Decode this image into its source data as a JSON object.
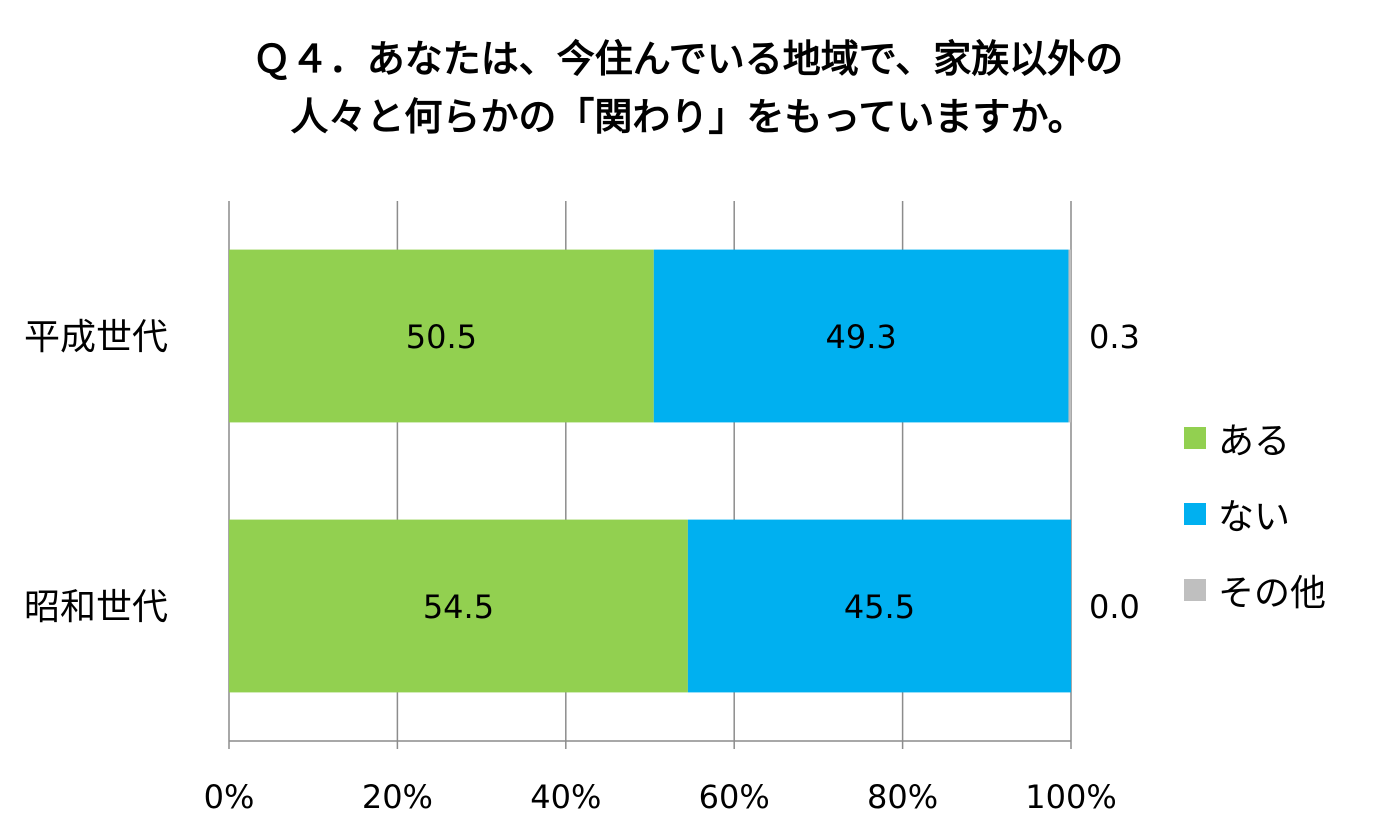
{
  "chart_data": {
    "type": "bar",
    "orientation": "horizontal",
    "stacked": "percent",
    "title_lines": [
      "Ｑ４．あなたは、今住んでいる地域で、家族以外の",
      "人々と何らかの「関わり」をもっていますか。"
    ],
    "categories": [
      "平成世代",
      "昭和世代"
    ],
    "series": [
      {
        "name": "ある",
        "values": [
          50.5,
          54.5
        ],
        "color": "#92d050",
        "labels": [
          "50.5",
          "54.5"
        ]
      },
      {
        "name": "ない",
        "values": [
          49.3,
          45.5
        ],
        "color": "#00b0f0",
        "labels": [
          "49.3",
          "45.5"
        ]
      },
      {
        "name": "その他",
        "values": [
          0.3,
          0.0
        ],
        "color": "#bfbfbf",
        "labels": [
          "0.3",
          "0.0"
        ]
      }
    ],
    "xlim": [
      0,
      100
    ],
    "x_ticks": [
      "0%",
      "20%",
      "40%",
      "60%",
      "80%",
      "100%"
    ],
    "grid": true,
    "legend_position": "right"
  }
}
